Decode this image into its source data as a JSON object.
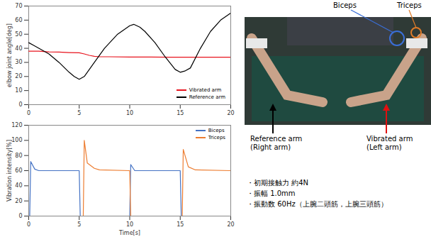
{
  "chart_data": [
    {
      "type": "line",
      "ylabel": "elbow joint angle[deg]",
      "xlim": [
        0,
        20
      ],
      "xticks": [
        0,
        5,
        10,
        15,
        20
      ],
      "ylim": [
        0,
        70
      ],
      "yticks": [
        0,
        10,
        20,
        30,
        40,
        50,
        60,
        70
      ],
      "legend": "lower right",
      "series": [
        {
          "name": "Vibrated arm",
          "color": "#e8141e",
          "x": [
            0,
            1,
            2,
            3,
            4,
            5,
            5.5,
            6,
            6.5,
            7,
            8,
            10,
            12,
            14,
            16,
            18,
            20
          ],
          "values": [
            38,
            38,
            37.5,
            37.3,
            37,
            36.8,
            36,
            35,
            34.3,
            34,
            34,
            33.8,
            33.8,
            33.7,
            33.7,
            33.7,
            33.7
          ]
        },
        {
          "name": "Reference arm",
          "color": "#000000",
          "x": [
            0,
            0.5,
            1,
            2,
            3,
            4,
            4.5,
            5,
            5.5,
            6,
            6.5,
            7.5,
            8.8,
            10,
            10.4,
            11,
            11.5,
            12.5,
            13.5,
            14.5,
            15,
            15.5,
            16,
            17,
            18,
            19,
            20
          ],
          "values": [
            44,
            42,
            40,
            36,
            30,
            23,
            20,
            18,
            20,
            25,
            30,
            40,
            50,
            56,
            57,
            55,
            52,
            44,
            34,
            25,
            23,
            24,
            26,
            40,
            52,
            60,
            65
          ]
        }
      ]
    },
    {
      "type": "line",
      "xlabel": "Time[s]",
      "ylabel": "Vibration intensity[%]",
      "xlim": [
        0,
        20
      ],
      "xticks": [
        0,
        5,
        10,
        15,
        20
      ],
      "ylim": [
        0,
        120
      ],
      "yticks": [
        0,
        20,
        40,
        60,
        80,
        100,
        120
      ],
      "legend": "upper right",
      "series": [
        {
          "name": "Biceps",
          "color": "#4472c4",
          "x": [
            0,
            0.1,
            0.2,
            0.6,
            1,
            5,
            5.1,
            10,
            10.1,
            10.5,
            15,
            15.1,
            20
          ],
          "values": [
            0,
            0,
            72,
            62,
            60,
            60,
            0,
            0,
            68,
            60,
            60,
            0,
            0
          ]
        },
        {
          "name": "Triceps",
          "color": "#ed7d31",
          "x": [
            0,
            5.4,
            5.5,
            5.8,
            6.5,
            7,
            10,
            10.1,
            15.2,
            15.3,
            15.8,
            16.5,
            20
          ],
          "values": [
            0,
            0,
            100,
            70,
            63,
            61,
            60,
            0,
            0,
            88,
            65,
            61,
            60
          ]
        }
      ]
    }
  ],
  "photo": {
    "labels": {
      "biceps": "Biceps",
      "triceps": "Triceps",
      "reference_arm": [
        "Reference arm",
        "(Right arm)"
      ],
      "vibrated_arm": [
        "Vibrated arm",
        "(Left arm)"
      ]
    }
  },
  "notes": [
    "・初期接触力 約4N",
    "・振幅 1.0mm",
    "・振動数 60Hz（上腕二頭筋，上腕三頭筋）"
  ]
}
